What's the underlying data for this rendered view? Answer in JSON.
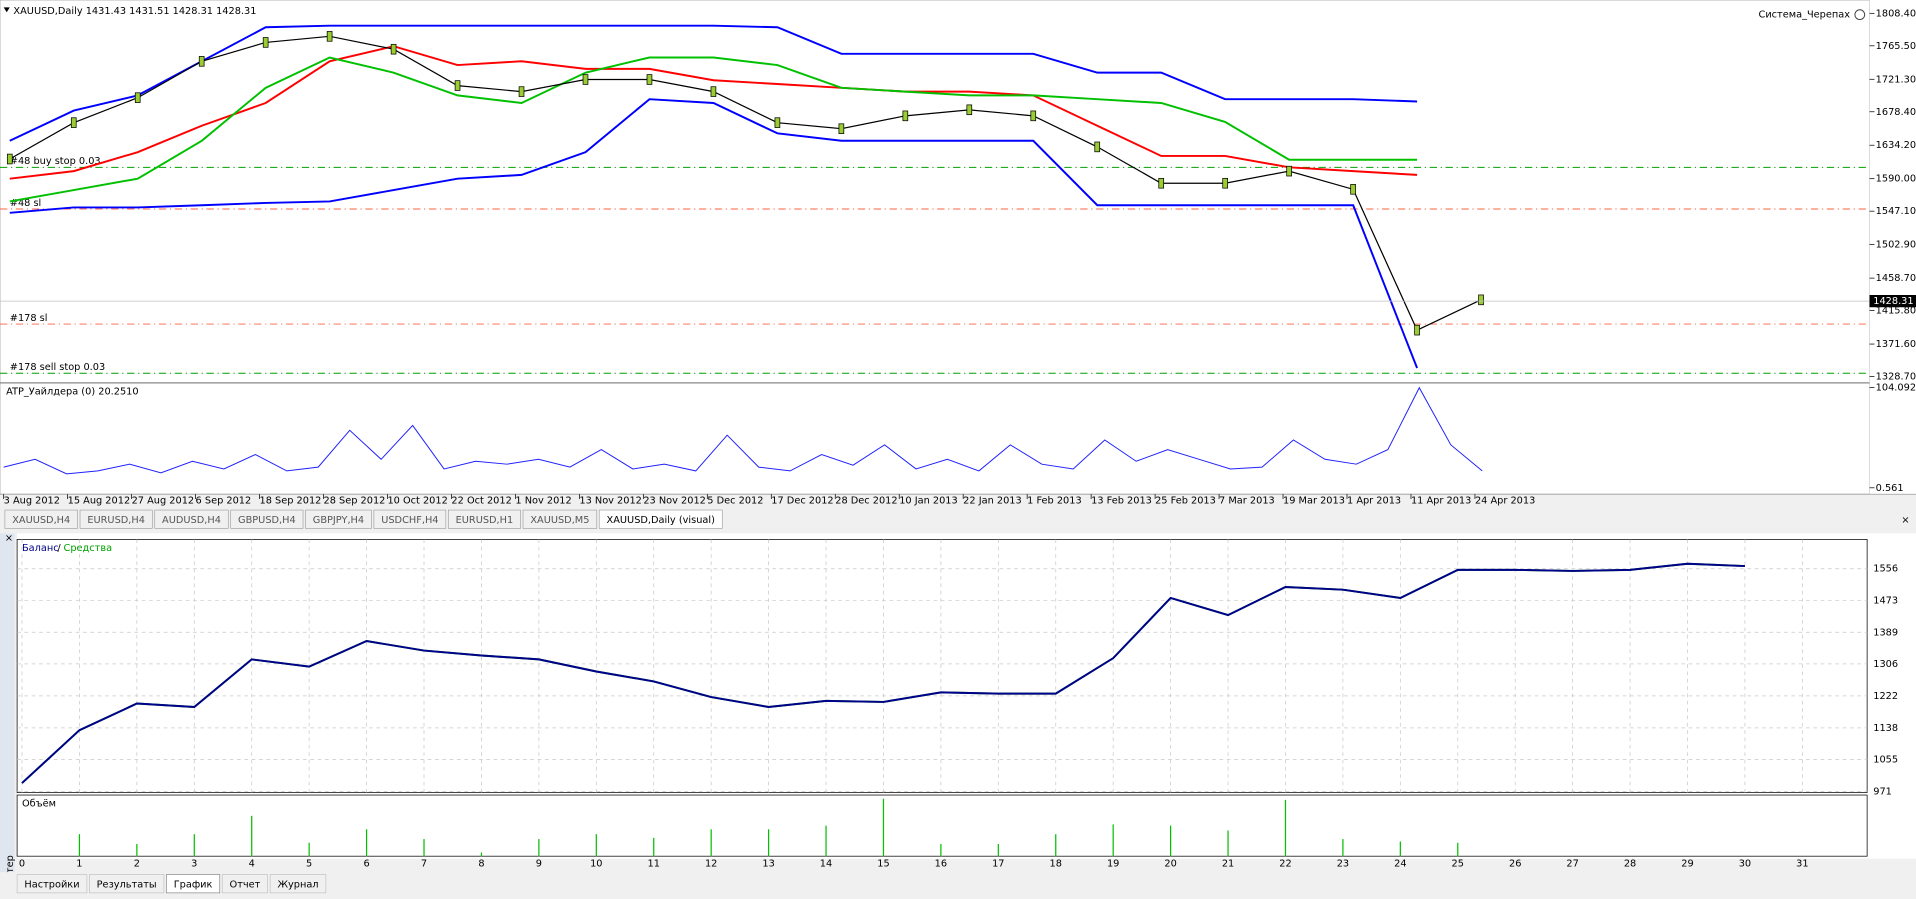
{
  "window": {
    "symbol_info": "XAUUSD,Daily  1431.43 1431.51 1428.31 1428.31",
    "expert": "Система_Черепах"
  },
  "chart_data": [
    {
      "type": "candle-line",
      "categories": [
        "3 Aug 2012",
        "15 Aug 2012",
        "27 Aug 2012",
        "6 Sep 2012",
        "18 Sep 2012",
        "28 Sep 2012",
        "10 Oct 2012",
        "22 Oct 2012",
        "1 Nov 2012",
        "13 Nov 2012",
        "23 Nov 2012",
        "5 Dec 2012",
        "17 Dec 2012",
        "28 Dec 2012",
        "10 Jan 2013",
        "22 Jan 2013",
        "1 Feb 2013",
        "13 Feb 2013",
        "25 Feb 2013",
        "7 Mar 2013",
        "19 Mar 2013",
        "1 Apr 2013",
        "11 Apr 2013",
        "24 Apr 2013"
      ],
      "series": [
        {
          "color": "#0000ff",
          "values": [
            1640,
            1680,
            1700,
            1745,
            1790,
            1792,
            1792,
            1792,
            1792,
            1792,
            1792,
            1792,
            1790,
            1755,
            1755,
            1755,
            1755,
            1730,
            1730,
            1695,
            1695,
            1695,
            1692,
            null
          ]
        },
        {
          "color": "#0000ff",
          "values": [
            1545,
            1552,
            1552,
            1555,
            1558,
            1560,
            1575,
            1590,
            1595,
            1625,
            1695,
            1690,
            1650,
            1640,
            1640,
            1640,
            1640,
            1555,
            1555,
            1555,
            1555,
            1555,
            1340,
            null
          ]
        },
        {
          "color": "#ff0000",
          "values": [
            1590,
            1600,
            1625,
            1660,
            1690,
            1745,
            1765,
            1740,
            1745,
            1735,
            1735,
            1720,
            1715,
            1710,
            1705,
            1705,
            1700,
            1660,
            1620,
            1620,
            1605,
            1600,
            1595,
            null
          ]
        },
        {
          "color": "#00c000",
          "values": [
            1560,
            1575,
            1590,
            1640,
            1710,
            1750,
            1730,
            1700,
            1690,
            1730,
            1750,
            1750,
            1740,
            1710,
            1705,
            1700,
            1700,
            1695,
            1690,
            1665,
            1615,
            1615,
            1615,
            null
          ]
        },
        {
          "color": "#000000",
          "values": [
            1616,
            1664,
            1697,
            1745,
            1770,
            1778,
            1761,
            1713,
            1705,
            1721,
            1721,
            1705,
            1664,
            1656,
            1673,
            1681,
            1673,
            1632,
            1584,
            1584,
            1600,
            1576,
            1390,
            1430
          ]
        }
      ],
      "ylim": [
        1322,
        1826
      ],
      "yticks": [
        {
          "value": 1808.4,
          "label": "1808.40"
        },
        {
          "value": 1765.5,
          "label": "1765.50"
        },
        {
          "value": 1721.3,
          "label": "1721.30"
        },
        {
          "value": 1678.4,
          "label": "1678.40"
        },
        {
          "value": 1634.2,
          "label": "1634.20"
        },
        {
          "value": 1590,
          "label": "1590.00"
        },
        {
          "value": 1547.1,
          "label": "1547.10"
        },
        {
          "value": 1502.9,
          "label": "1502.90"
        },
        {
          "value": 1458.7,
          "label": "1458.70"
        },
        {
          "value": 1415.8,
          "label": "1415.80"
        },
        {
          "value": 1371.6,
          "label": "1371.60"
        },
        {
          "value": 1328.7,
          "label": "1328.70"
        }
      ],
      "current_price": {
        "value": 1428.31,
        "label": "1428.31"
      },
      "orders": [
        {
          "label": "#48 buy stop 0.03",
          "value": 1605,
          "color": "#00a000"
        },
        {
          "label": "#48 sl",
          "value": 1550,
          "color": "#ff6040"
        },
        {
          "label": "#178 sl",
          "value": 1398,
          "color": "#ff6040"
        },
        {
          "label": "#178 sell stop 0.03",
          "value": 1333,
          "color": "#00a000"
        }
      ]
    },
    {
      "type": "line",
      "title": "ATP_Уайлдера (0) 20.2510",
      "color": "#2020ff",
      "values": [
        22,
        30,
        15,
        18,
        25,
        16,
        28,
        20,
        35,
        18,
        22,
        60,
        30,
        65,
        20,
        28,
        25,
        30,
        22,
        40,
        20,
        25,
        18,
        55,
        22,
        18,
        35,
        24,
        45,
        20,
        30,
        18,
        45,
        25,
        20,
        50,
        28,
        40,
        30,
        20,
        22,
        50,
        30,
        25,
        40,
        104,
        45,
        18
      ],
      "ylim": [
        -6,
        107.8
      ],
      "yticks": [
        {
          "value": 104.0925,
          "label": "104.0925"
        },
        0.561
      ]
    },
    {
      "type": "line",
      "legend_separator": "/",
      "x": [
        0,
        1,
        2,
        3,
        4,
        5,
        6,
        7,
        8,
        9,
        10,
        11,
        12,
        13,
        14,
        15,
        16,
        17,
        18,
        19,
        20,
        21,
        22,
        23,
        24,
        25,
        26,
        27,
        28,
        29,
        30
      ],
      "series": [
        {
          "name": "Средства",
          "color": "#00a000",
          "values": [
            993,
            1132,
            1202,
            1193,
            1318,
            1299,
            1366,
            1341,
            1328,
            1318,
            1286,
            1260,
            1219,
            1193,
            1209,
            1206,
            1231,
            1228,
            1228,
            1321,
            1479,
            1434,
            1508,
            1501,
            1479,
            1553,
            1553,
            1550,
            1553,
            1569,
            1563
          ]
        },
        {
          "name": "Баланс",
          "color": "#00008b",
          "values": [
            993,
            1132,
            1202,
            1193,
            1318,
            1299,
            1366,
            1341,
            1328,
            1318,
            1286,
            1260,
            1219,
            1193,
            1209,
            1206,
            1231,
            1228,
            1228,
            1321,
            1479,
            1434,
            1508,
            1501,
            1479,
            1553,
            1553,
            1550,
            1553,
            1569,
            1563
          ]
        }
      ],
      "xlim": [
        0,
        31
      ],
      "xticks": [
        0,
        1,
        2,
        3,
        4,
        5,
        6,
        7,
        8,
        9,
        10,
        11,
        12,
        13,
        14,
        15,
        16,
        17,
        18,
        19,
        20,
        21,
        22,
        23,
        24,
        25,
        26,
        27,
        28,
        29,
        30,
        31
      ],
      "ylim": [
        968,
        1633
      ],
      "yticks": [
        1556,
        1473,
        1389,
        1306,
        1222,
        1138,
        1055,
        971
      ],
      "grid": true
    },
    {
      "type": "bar",
      "title": "Объём",
      "color": "#00c000",
      "values": [
        0,
        0.36,
        0.2,
        0.36,
        0.66,
        0.22,
        0.44,
        0.28,
        0.06,
        0.28,
        0.36,
        0.3,
        0.44,
        0.44,
        0.5,
        0.94,
        0.2,
        0.2,
        0.36,
        0.52,
        0.5,
        0.42,
        0.92,
        0.28,
        0.24,
        0.22,
        0,
        0,
        0,
        0,
        0
      ],
      "ylim": [
        0,
        1
      ]
    }
  ],
  "symbol_tabs": [
    "XAUUSD,H4",
    "EURUSD,H4",
    "AUDUSD,H4",
    "GBPUSD,H4",
    "GBPJPY,H4",
    "USDCHF,H4",
    "EURUSD,H1",
    "XAUUSD,M5",
    "XAUUSD,Daily (visual)"
  ],
  "active_symbol_tab": 8,
  "tester_tabs": [
    "Настройки",
    "Результаты",
    "График",
    "Отчет",
    "Журнал"
  ],
  "active_tester_tab": 2,
  "tester_label": "Тестер"
}
